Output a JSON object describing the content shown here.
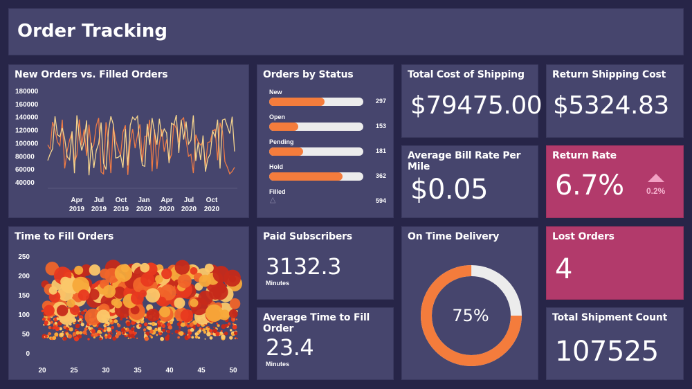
{
  "header": {
    "title": "Order Tracking"
  },
  "orders_chart": {
    "title": "New Orders vs. Filled Orders",
    "y_ticks": [
      "180000",
      "160000",
      "140000",
      "120000",
      "100000",
      "80000",
      "60000",
      "40000"
    ],
    "x_months": [
      "Apr",
      "Jul",
      "Oct",
      "Jan",
      "Apr",
      "Jul",
      "Oct"
    ],
    "x_years": [
      "2019",
      "2019",
      "2019",
      "2020",
      "2020",
      "2020",
      "2020"
    ],
    "colors": {
      "new": "#ef7b45",
      "filled": "#f6d58e"
    }
  },
  "status": {
    "title": "Orders by Status",
    "items": [
      {
        "label": "New",
        "value": "297",
        "fraction": 0.59
      },
      {
        "label": "Open",
        "value": "153",
        "fraction": 0.31
      },
      {
        "label": "Pending",
        "value": "181",
        "fraction": 0.36
      },
      {
        "label": "Hold",
        "value": "362",
        "fraction": 0.78
      },
      {
        "label": "Filled",
        "value": "594",
        "fraction": 0.0
      }
    ]
  },
  "kpi": {
    "total_cost_title": "Total Cost of Shipping",
    "total_cost_value": "$79475.00",
    "return_cost_title": "Return Shipping Cost",
    "return_cost_value": "$5324.83",
    "bill_rate_title": "Average Bill Rate Per Mile",
    "bill_rate_value": "$0.05",
    "return_rate_title": "Return Rate",
    "return_rate_value": "6.7%",
    "return_rate_delta": "0.2%",
    "paid_title": "Paid Subscribers",
    "paid_value": "3132.3",
    "paid_unit": "Minutes",
    "avg_fill_title": "Average Time to Fill Order",
    "avg_fill_value": "23.4",
    "avg_fill_unit": "Minutes",
    "ontime_title": "On Time Delivery",
    "ontime_value": "75%",
    "ontime_fraction": 0.75,
    "lost_title": "Lost Orders",
    "lost_value": "4",
    "shipments_title": "Total Shipment Count",
    "shipments_value": "107525"
  },
  "fill_chart": {
    "title": "Time to Fill Orders",
    "y_ticks": [
      "250",
      "200",
      "150",
      "100",
      "50",
      "0"
    ],
    "x_ticks": [
      "20",
      "25",
      "30",
      "35",
      "40",
      "45",
      "50"
    ],
    "colors": [
      "#e8391f",
      "#f0652a",
      "#f7a93a",
      "#fbc86a",
      "#c62a1a"
    ]
  },
  "colors": {
    "background": "#272548",
    "panel": "#46456d",
    "accent": "#f47c3c",
    "pink": "#b23a6b",
    "track": "#ececec"
  }
}
